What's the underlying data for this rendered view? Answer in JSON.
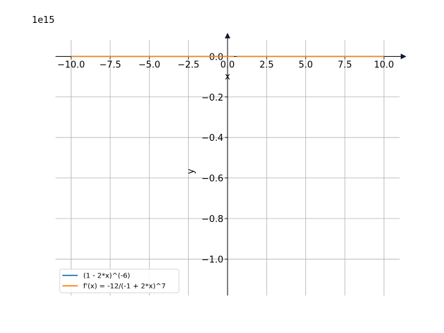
{
  "chart_data": {
    "type": "line",
    "scale_label": "1e15",
    "xlabel": "x",
    "ylabel": "y",
    "xlim": [
      -11,
      11
    ],
    "ylim": [
      -1.18,
      0.08
    ],
    "grid": true,
    "legend_position": "lower-left",
    "x_ticks": [
      {
        "value": -10,
        "label": "−10.0"
      },
      {
        "value": -7.5,
        "label": "−7.5"
      },
      {
        "value": -5,
        "label": "−5.0"
      },
      {
        "value": -2.5,
        "label": "−2.5"
      },
      {
        "value": 0,
        "label": "0.0"
      },
      {
        "value": 2.5,
        "label": "2.5"
      },
      {
        "value": 5,
        "label": "5.0"
      },
      {
        "value": 7.5,
        "label": "7.5"
      },
      {
        "value": 10,
        "label": "10.0"
      }
    ],
    "y_ticks": [
      {
        "value": 0.0,
        "label": "0.0"
      },
      {
        "value": -0.2,
        "label": "−0.2"
      },
      {
        "value": -0.4,
        "label": "−0.4"
      },
      {
        "value": -0.6,
        "label": "−0.6"
      },
      {
        "value": -0.8,
        "label": "−0.8"
      },
      {
        "value": -1.0,
        "label": "−1.0"
      }
    ],
    "series": [
      {
        "name": "(1 - 2*x)^(-6)",
        "color": "#1f77b4",
        "x": [
          -10,
          -7.5,
          -5,
          -2.5,
          -1,
          0,
          0.4,
          0.6,
          1,
          2.5,
          5,
          7.5,
          10
        ],
        "y": [
          0,
          0,
          0,
          0,
          0,
          0,
          0,
          0,
          0,
          0,
          0,
          0,
          0
        ]
      },
      {
        "name": "f'(x) = -12/(-1 + 2*x)^7",
        "color": "#ff7f0e",
        "x": [
          -10,
          -7.5,
          -5,
          -2.5,
          -1,
          0,
          0.4,
          0.6,
          1,
          2.5,
          5,
          7.5,
          10
        ],
        "y": [
          0,
          0,
          0,
          0,
          0,
          0,
          0,
          0,
          0,
          0,
          0,
          0,
          0
        ]
      }
    ]
  }
}
